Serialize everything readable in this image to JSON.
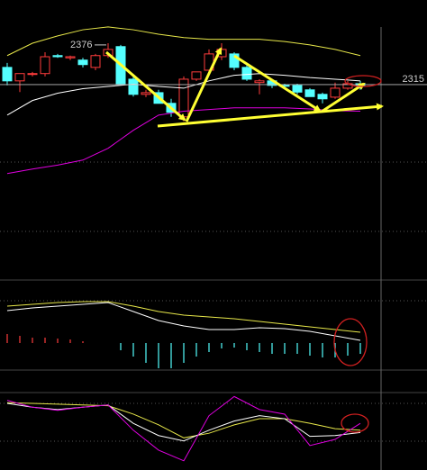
{
  "chart_data": [
    {
      "type": "candlestick",
      "high_label": 2376,
      "level_label": 2315,
      "ylim": [
        1959,
        2456
      ],
      "up_color": "#ff3c3c",
      "down_color": "#54ffff",
      "candles": {
        "open": [
          2336,
          2312,
          2324,
          2325,
          2357,
          2353,
          2349,
          2336,
          2357,
          2373,
          2315,
          2288,
          2291,
          2272,
          2248,
          2315,
          2331,
          2355,
          2360,
          2336,
          2309,
          2312,
          2304,
          2304,
          2296,
          2288,
          2283,
          2299,
          2307
        ],
        "high": [
          2344,
          2320,
          2328,
          2363,
          2360,
          2357,
          2353,
          2360,
          2379,
          2376,
          2320,
          2296,
          2296,
          2280,
          2320,
          2328,
          2368,
          2379,
          2363,
          2341,
          2315,
          2315,
          2307,
          2307,
          2299,
          2291,
          2309,
          2312,
          2312
        ],
        "low": [
          2304,
          2292,
          2320,
          2320,
          2353,
          2349,
          2336,
          2331,
          2353,
          2304,
          2284,
          2283,
          2272,
          2248,
          2240,
          2312,
          2328,
          2349,
          2331,
          2312,
          2288,
          2299,
          2299,
          2288,
          2284,
          2272,
          2280,
          2296,
          2296
        ],
        "close": [
          2312,
          2325,
          2325,
          2355,
          2355,
          2355,
          2341,
          2357,
          2368,
          2307,
          2288,
          2291,
          2272,
          2256,
          2315,
          2328,
          2360,
          2368,
          2336,
          2315,
          2312,
          2304,
          2303,
          2292,
          2284,
          2280,
          2299,
          2307,
          2304
        ]
      },
      "series": [
        {
          "color": "#e8e84a",
          "x": [
            0,
            2,
            4,
            6,
            8,
            10,
            12,
            14,
            16,
            18,
            20,
            22,
            24,
            26,
            28
          ],
          "values": [
            2357,
            2379,
            2392,
            2403,
            2408,
            2403,
            2395,
            2389,
            2386,
            2386,
            2386,
            2382,
            2376,
            2368,
            2357
          ]
        },
        {
          "color": "#ffffff",
          "x": [
            0,
            2,
            4,
            6,
            8,
            10,
            12,
            14,
            16,
            18,
            20,
            22,
            24,
            26,
            28
          ],
          "values": [
            2251,
            2277,
            2290,
            2298,
            2302,
            2306,
            2302,
            2299,
            2312,
            2322,
            2325,
            2322,
            2318,
            2315,
            2312
          ]
        },
        {
          "color": "#e000e0",
          "x": [
            0,
            2,
            4,
            6,
            8,
            10,
            12,
            14,
            16,
            18,
            20,
            22,
            24,
            26,
            28
          ],
          "values": [
            2147,
            2155,
            2162,
            2171,
            2192,
            2224,
            2251,
            2258,
            2261,
            2264,
            2264,
            2264,
            2262,
            2259,
            2258
          ]
        }
      ]
    },
    {
      "type": "bar",
      "ylim": [
        -29,
        69
      ],
      "up_color": "#ff3c3c",
      "down_color": "#54ffff",
      "values": [
        10,
        8,
        6,
        6,
        5,
        4,
        2,
        0,
        0,
        -8,
        -15,
        -22,
        -28,
        -28,
        -22,
        -15,
        -10,
        -6,
        -5,
        -8,
        -10,
        -12,
        -12,
        -12,
        -14,
        -16,
        -16,
        -14,
        -12
      ],
      "series": [
        {
          "color": "#e8e84a",
          "x": [
            0,
            2,
            4,
            6,
            8,
            10,
            12,
            14,
            16,
            18,
            20,
            22,
            24,
            26,
            28
          ],
          "values": [
            41,
            43,
            45,
            46,
            46,
            41,
            35,
            31,
            29,
            27,
            24,
            21,
            18,
            15,
            12
          ]
        },
        {
          "color": "#ffffff",
          "x": [
            0,
            2,
            4,
            6,
            8,
            10,
            12,
            14,
            16,
            18,
            20,
            22,
            24,
            26,
            28
          ],
          "values": [
            36,
            39,
            41,
            43,
            45,
            35,
            25,
            19,
            15,
            15,
            17,
            16,
            13,
            8,
            3
          ]
        }
      ]
    },
    {
      "type": "line",
      "ylim": [
        0,
        100
      ],
      "series": [
        {
          "color": "#e8e84a",
          "x": [
            0,
            2,
            4,
            6,
            8,
            10,
            12,
            14,
            16,
            18,
            20,
            22,
            24,
            26,
            28
          ],
          "values": [
            88,
            87,
            86,
            85,
            84,
            73,
            59,
            42,
            48,
            59,
            67,
            67,
            61,
            54,
            52
          ]
        },
        {
          "color": "#ffffff",
          "x": [
            0,
            2,
            4,
            6,
            8,
            10,
            12,
            14,
            16,
            18,
            20,
            22,
            24,
            26,
            28
          ],
          "values": [
            87,
            82,
            79,
            82,
            85,
            61,
            45,
            38,
            52,
            64,
            71,
            67,
            44,
            45,
            49
          ]
        },
        {
          "color": "#e000e0",
          "x": [
            0,
            2,
            4,
            6,
            8,
            10,
            12,
            14,
            16,
            18,
            20,
            22,
            24,
            26,
            28
          ],
          "values": [
            91,
            82,
            78,
            82,
            85,
            52,
            26,
            12,
            71,
            96,
            79,
            73,
            32,
            40,
            61
          ]
        }
      ]
    }
  ]
}
